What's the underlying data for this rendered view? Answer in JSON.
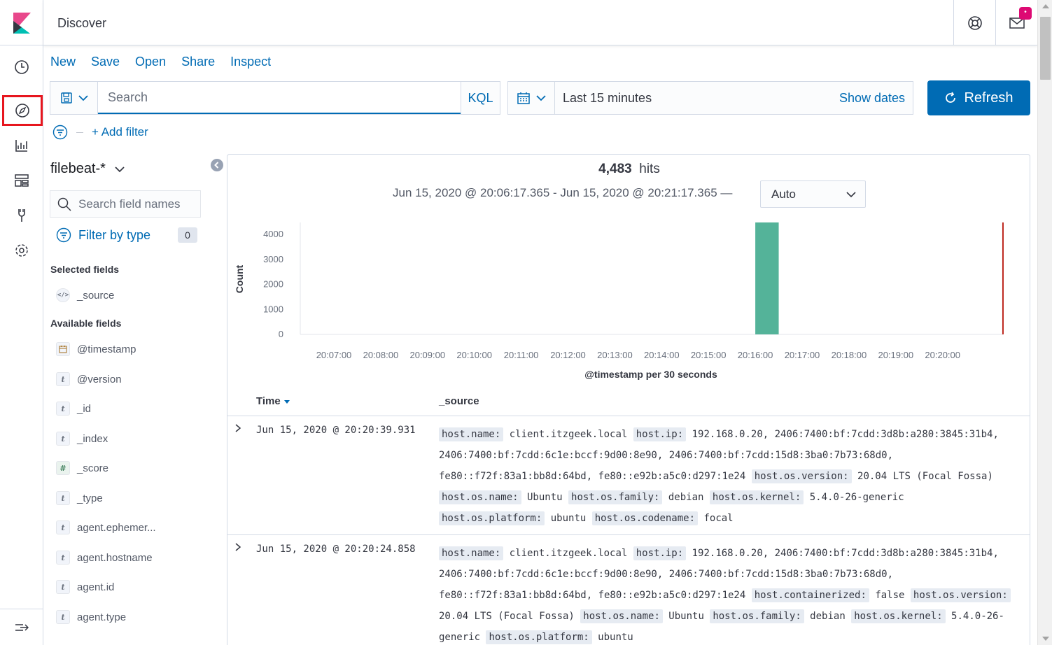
{
  "header": {
    "title": "Discover",
    "mail_badge": "•"
  },
  "nav": {
    "items": [
      "clock-icon",
      "compass-icon",
      "visualize-icon",
      "dashboard-icon",
      "dev-tools-icon",
      "gear-icon"
    ],
    "active": "compass-icon"
  },
  "topmenu": {
    "new": "New",
    "save": "Save",
    "open": "Open",
    "share": "Share",
    "inspect": "Inspect"
  },
  "query": {
    "placeholder": "Search",
    "language": "KQL"
  },
  "time": {
    "range": "Last 15 minutes",
    "show_dates": "Show dates",
    "refresh": "Refresh"
  },
  "filters": {
    "add_filter": "+ Add filter"
  },
  "sidebar": {
    "index_pattern": "filebeat-*",
    "search_placeholder": "Search field names",
    "filter_by_type": "Filter by type",
    "filter_count": "0",
    "selected_title": "Selected fields",
    "selected": [
      {
        "type": "source",
        "name": "_source"
      }
    ],
    "available_title": "Available fields",
    "available": [
      {
        "type": "date",
        "name": "@timestamp"
      },
      {
        "type": "t",
        "name": "@version"
      },
      {
        "type": "t",
        "name": "_id"
      },
      {
        "type": "t",
        "name": "_index"
      },
      {
        "type": "#",
        "name": "_score"
      },
      {
        "type": "t",
        "name": "_type"
      },
      {
        "type": "t",
        "name": "agent.ephemer..."
      },
      {
        "type": "t",
        "name": "agent.hostname"
      },
      {
        "type": "t",
        "name": "agent.id"
      },
      {
        "type": "t",
        "name": "agent.type"
      }
    ]
  },
  "results": {
    "hits": "4,483",
    "hits_label": "hits",
    "range": "Jun 15, 2020 @ 20:06:17.365 - Jun 15, 2020 @ 20:21:17.365 —",
    "interval": "Auto"
  },
  "chart_data": {
    "type": "bar",
    "x": [
      "20:07:00",
      "20:08:00",
      "20:09:00",
      "20:10:00",
      "20:11:00",
      "20:12:00",
      "20:13:00",
      "20:14:00",
      "20:15:00",
      "20:16:00",
      "20:17:00",
      "20:18:00",
      "20:19:00",
      "20:20:00"
    ],
    "yticks": [
      0,
      1000,
      2000,
      3000,
      4000
    ],
    "ylim": [
      0,
      4483
    ],
    "ylabel": "Count",
    "xlabel": "@timestamp per 30 seconds",
    "bars": [
      {
        "start": "20:16:00",
        "end": "20:16:30",
        "value": 4483
      }
    ],
    "bar_color": "#54b399",
    "now_marker": "20:21:17.365",
    "now_marker_color": "#bd271e"
  },
  "table": {
    "col_time": "Time",
    "col_source": "_source",
    "rows": [
      {
        "time": "Jun 15, 2020 @ 20:20:39.931",
        "fields": [
          {
            "k": "host.name:",
            "v": "client.itzgeek.local"
          },
          {
            "k": "host.ip:",
            "v": "192.168.0.20, 2406:7400:bf:7cdd:3d8b:a280:3845:31b4, 2406:7400:bf:7cdd:6c1e:bccf:9d00:8e90, 2406:7400:bf:7cdd:15d8:3ba0:7b73:68d0, fe80::f72f:83a1:bb8d:64bd, fe80::e92b:a5c0:d297:1e24"
          },
          {
            "k": "host.os.version:",
            "v": "20.04 LTS (Focal Fossa)"
          },
          {
            "k": "host.os.name:",
            "v": "Ubuntu"
          },
          {
            "k": "host.os.family:",
            "v": "debian"
          },
          {
            "k": "host.os.kernel:",
            "v": "5.4.0-26-generic"
          },
          {
            "k": "host.os.platform:",
            "v": "ubuntu"
          },
          {
            "k": "host.os.codename:",
            "v": "focal"
          }
        ]
      },
      {
        "time": "Jun 15, 2020 @ 20:20:24.858",
        "fields": [
          {
            "k": "host.name:",
            "v": "client.itzgeek.local"
          },
          {
            "k": "host.ip:",
            "v": "192.168.0.20, 2406:7400:bf:7cdd:3d8b:a280:3845:31b4, 2406:7400:bf:7cdd:6c1e:bccf:9d00:8e90, 2406:7400:bf:7cdd:15d8:3ba0:7b73:68d0, fe80::f72f:83a1:bb8d:64bd, fe80::e92b:a5c0:d297:1e24"
          },
          {
            "k": "host.containerized:",
            "v": "false"
          },
          {
            "k": "host.os.version:",
            "v": "20.04 LTS (Focal Fossa)"
          },
          {
            "k": "host.os.name:",
            "v": "Ubuntu"
          },
          {
            "k": "host.os.family:",
            "v": "debian"
          },
          {
            "k": "host.os.kernel:",
            "v": "5.4.0-26-generic"
          },
          {
            "k": "host.os.platform:",
            "v": "ubuntu"
          }
        ]
      }
    ]
  }
}
